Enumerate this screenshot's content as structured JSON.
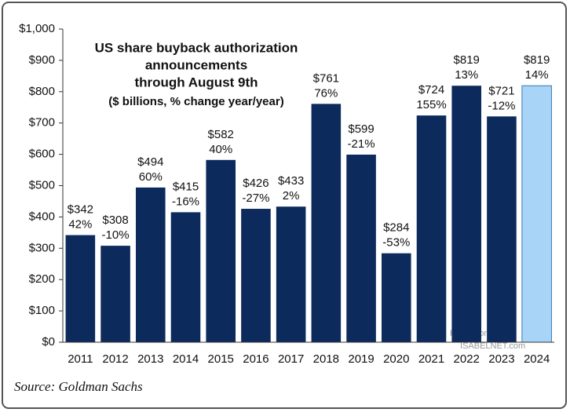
{
  "chart_data": {
    "type": "bar",
    "title": [
      "US share buyback authorization",
      "announcements",
      "through August 9th",
      "($ billions, % change year/year)"
    ],
    "categories": [
      "2011",
      "2012",
      "2013",
      "2014",
      "2015",
      "2016",
      "2017",
      "2018",
      "2019",
      "2020",
      "2021",
      "2022",
      "2023",
      "2024"
    ],
    "values": [
      342,
      308,
      494,
      415,
      582,
      426,
      433,
      761,
      599,
      284,
      724,
      819,
      721,
      819
    ],
    "value_labels": [
      "$342",
      "$308",
      "$494",
      "$415",
      "$582",
      "$426",
      "$433",
      "$761",
      "$599",
      "$284",
      "$724",
      "$819",
      "$721",
      "$819"
    ],
    "change_labels": [
      "42%",
      "-10%",
      "60%",
      "-16%",
      "40%",
      "-27%",
      "2%",
      "76%",
      "-21%",
      "-53%",
      "155%",
      "13%",
      "-12%",
      "14%"
    ],
    "colors": [
      "#0c2a5b",
      "#0c2a5b",
      "#0c2a5b",
      "#0c2a5b",
      "#0c2a5b",
      "#0c2a5b",
      "#0c2a5b",
      "#0c2a5b",
      "#0c2a5b",
      "#0c2a5b",
      "#0c2a5b",
      "#0c2a5b",
      "#0c2a5b",
      "#a8d5f7"
    ],
    "ylim": [
      0,
      1000
    ],
    "yticks": [
      {
        "value": 0,
        "label": "$0"
      },
      {
        "value": 100,
        "label": "$100"
      },
      {
        "value": 200,
        "label": "$200"
      },
      {
        "value": 300,
        "label": "$300"
      },
      {
        "value": 400,
        "label": "$400"
      },
      {
        "value": 500,
        "label": "$500"
      },
      {
        "value": 600,
        "label": "$600"
      },
      {
        "value": 700,
        "label": "$700"
      },
      {
        "value": 800,
        "label": "$800"
      },
      {
        "value": 900,
        "label": "$900"
      },
      {
        "value": 1000,
        "label": "$1,000"
      }
    ],
    "source": "Source: Goldman Sachs",
    "watermark": [
      "Posted on",
      "ISABELNET.com"
    ]
  }
}
